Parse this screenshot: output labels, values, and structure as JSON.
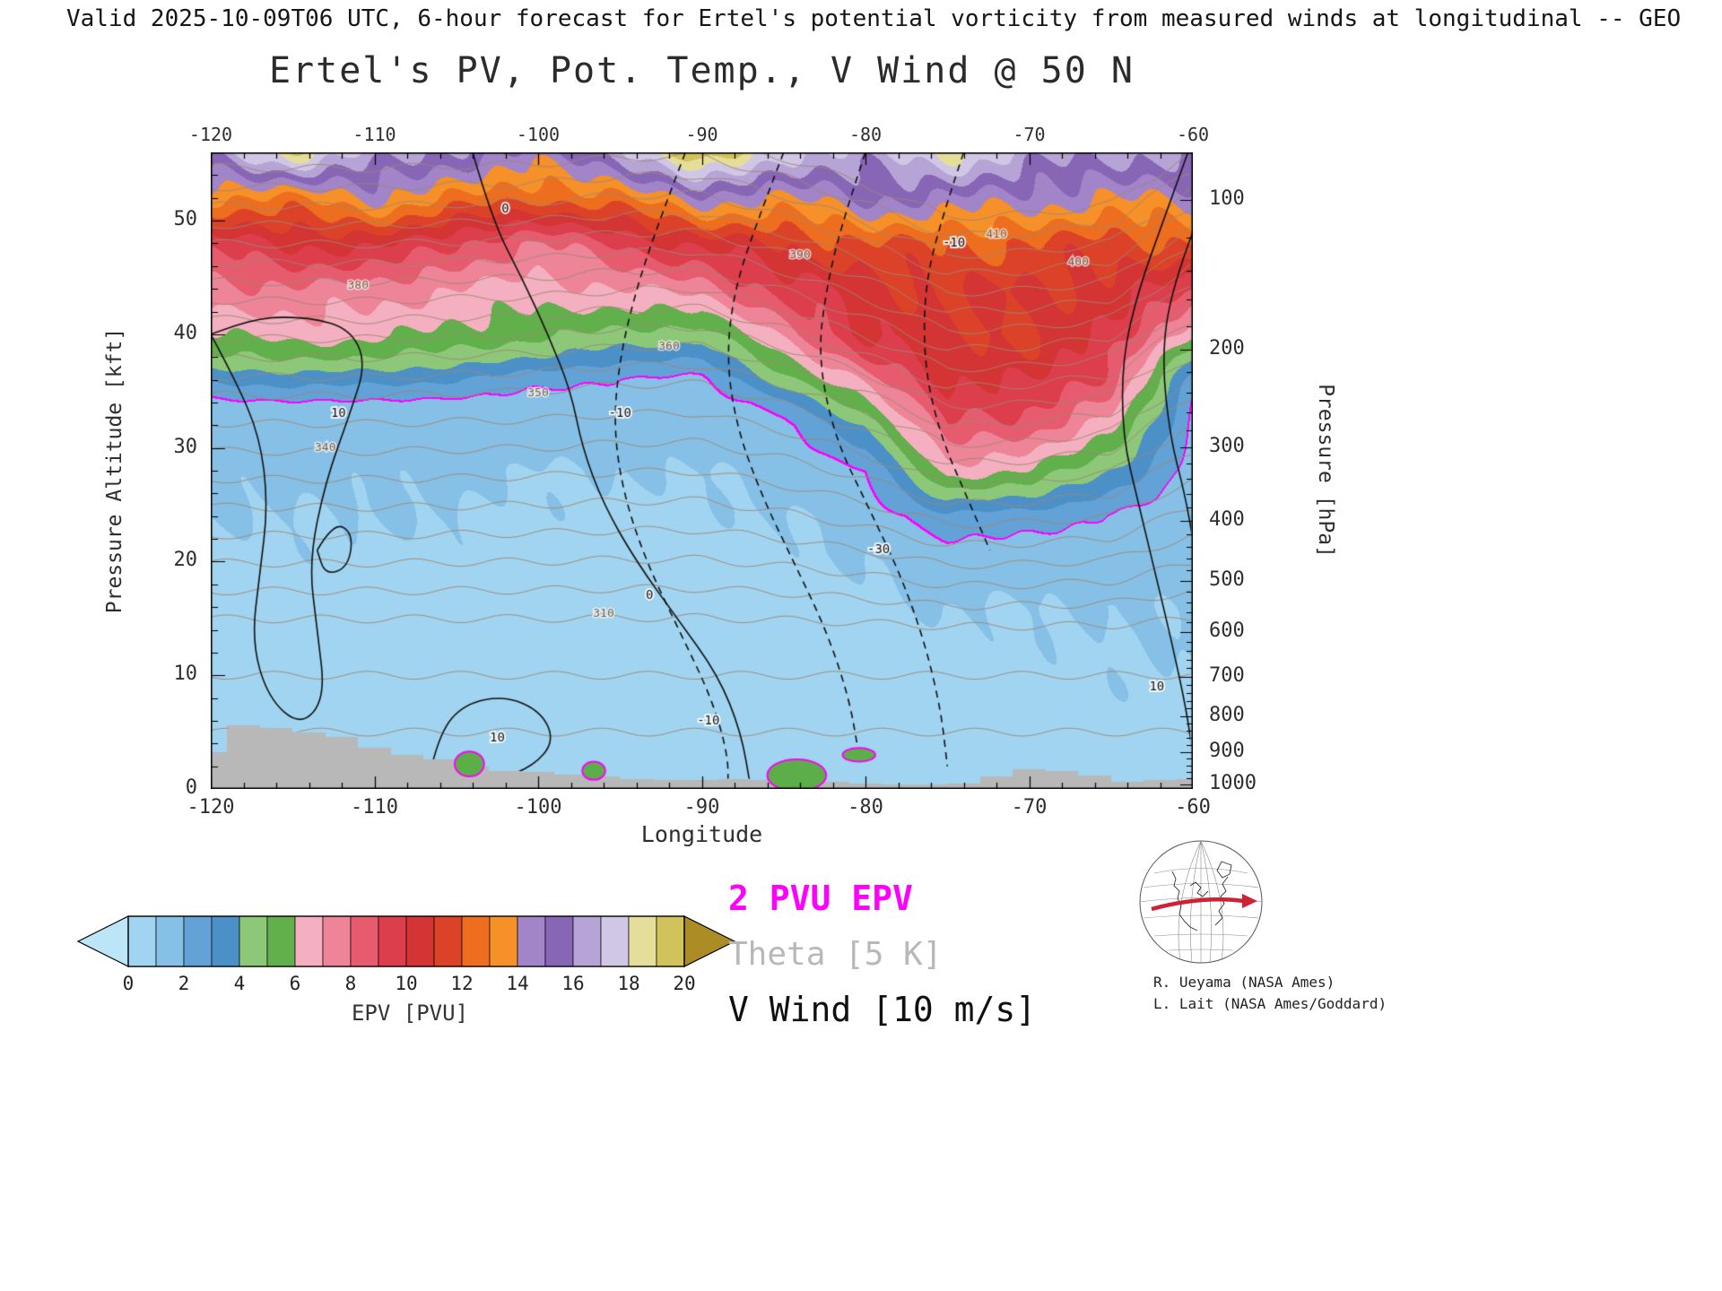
{
  "header": {
    "valid_line": "Valid 2025-10-09T06 UTC, 6-hour forecast for Ertel's potential vorticity from measured winds at longitudinal -- GEO"
  },
  "title": "Ertel's PV, Pot. Temp., V Wind @ 50 N",
  "axes": {
    "x": {
      "label": "Longitude",
      "min": -120,
      "max": -60,
      "major_ticks": [
        -120,
        -110,
        -100,
        -90,
        -80,
        -70,
        -60
      ],
      "minor_step": 2
    },
    "y_left": {
      "label": "Pressure Altitude [kft]",
      "min": 0,
      "max": 56,
      "major_ticks": [
        0,
        10,
        20,
        30,
        40,
        50
      ],
      "minor_step": 2
    },
    "y_right": {
      "label": "Pressure [hPa]",
      "ticks_hpa": [
        100,
        200,
        300,
        400,
        500,
        600,
        700,
        800,
        900,
        1000
      ]
    }
  },
  "legend": {
    "pv_line": "2 PVU EPV",
    "pv_color": "#ff00ff",
    "theta": "Theta [5 K]",
    "theta_color": "#b8b8b8",
    "wind": "V Wind [10 m/s]",
    "wind_color": "#101010"
  },
  "credits": [
    "R. Ueyama (NASA Ames)",
    "L. Lait (NASA Ames/Goddard)"
  ],
  "colorbar": {
    "title": "EPV [PVU]",
    "tick_labels": [
      0,
      2,
      4,
      6,
      8,
      10,
      12,
      14,
      16,
      18,
      20
    ],
    "under_color": "#bce6f8",
    "over_color": "#ac8c24",
    "bin_colors": [
      "#a0d4f0",
      "#86c0e6",
      "#62a2d6",
      "#4c90c8",
      "#8cc878",
      "#62b04c",
      "#f4b0c0",
      "#ee8498",
      "#e65c6e",
      "#dc3e4c",
      "#d43434",
      "#dc4228",
      "#ec6e1e",
      "#f69028",
      "#a284c8",
      "#8866b6",
      "#b6a4d6",
      "#d0c6e6",
      "#e4de9a",
      "#d2c25c"
    ]
  },
  "chart_data": {
    "type": "heatmap",
    "title": "Ertel's PV, Pot. Temp., V Wind @ 50 N",
    "xlabel": "Longitude",
    "ylabel_left": "Pressure Altitude [kft]",
    "ylabel_right": "Pressure [hPa]",
    "units": "PVU",
    "xlim": [
      -120,
      -60
    ],
    "ylim_kft": [
      0,
      56
    ],
    "x_lons": [
      -120,
      -115,
      -110,
      -105,
      -100,
      -95,
      -90,
      -85,
      -80,
      -75,
      -70,
      -65,
      -60
    ],
    "y_alts_kft": [
      0,
      4,
      8,
      12,
      16,
      20,
      24,
      28,
      32,
      34,
      36,
      38,
      40,
      44,
      48,
      52,
      56
    ],
    "epv_grid": [
      [
        0.8,
        0.8,
        0.8,
        0.9,
        0.9,
        0.8,
        0.8,
        0.8,
        0.8,
        0.8,
        0.9,
        0.9,
        0.9
      ],
      [
        0.7,
        0.7,
        0.7,
        0.8,
        0.8,
        0.7,
        0.7,
        0.7,
        0.7,
        0.8,
        0.8,
        0.8,
        0.8
      ],
      [
        0.7,
        0.7,
        0.7,
        0.7,
        0.7,
        0.7,
        0.7,
        0.7,
        0.8,
        0.8,
        0.9,
        0.9,
        0.9
      ],
      [
        0.7,
        0.7,
        0.7,
        0.7,
        0.7,
        0.7,
        0.7,
        0.8,
        0.8,
        0.9,
        0.9,
        1.0,
        1.0
      ],
      [
        0.8,
        0.8,
        0.8,
        0.8,
        0.8,
        0.8,
        0.7,
        0.8,
        0.9,
        1.0,
        1.0,
        1.0,
        1.1
      ],
      [
        0.9,
        0.9,
        0.9,
        0.9,
        0.8,
        0.8,
        0.8,
        0.9,
        1.0,
        1.3,
        1.2,
        1.2,
        1.2
      ],
      [
        1.0,
        1.0,
        1.0,
        1.0,
        0.9,
        0.9,
        0.9,
        1.0,
        1.2,
        2.8,
        2.5,
        1.9,
        1.3
      ],
      [
        1.1,
        1.1,
        1.1,
        1.1,
        1.0,
        1.0,
        1.0,
        1.2,
        2.0,
        6.5,
        6.0,
        4.0,
        1.5
      ],
      [
        1.4,
        1.4,
        1.4,
        1.3,
        1.3,
        1.2,
        1.2,
        1.7,
        4.0,
        9.0,
        8.5,
        6.5,
        1.7
      ],
      [
        1.8,
        1.9,
        1.9,
        1.7,
        1.6,
        1.4,
        1.3,
        2.6,
        6.0,
        9.5,
        9.5,
        7.5,
        2.0
      ],
      [
        3.2,
        3.4,
        3.4,
        3.0,
        2.4,
        1.9,
        1.8,
        4.5,
        7.5,
        10.0,
        10.2,
        8.5,
        2.6
      ],
      [
        4.8,
        5.2,
        5.0,
        4.6,
        4.0,
        3.4,
        3.0,
        6.0,
        9.0,
        10.5,
        10.8,
        9.2,
        4.0
      ],
      [
        6.0,
        6.5,
        6.2,
        5.8,
        5.2,
        4.8,
        4.4,
        7.5,
        10.0,
        11.0,
        11.0,
        10.0,
        6.0
      ],
      [
        7.5,
        8.0,
        7.5,
        7.0,
        6.5,
        7.0,
        7.5,
        9.5,
        10.5,
        11.0,
        11.0,
        10.5,
        9.5
      ],
      [
        9.5,
        10.0,
        10.5,
        9.0,
        8.0,
        9.0,
        10.5,
        11.0,
        12.0,
        12.0,
        12.0,
        11.5,
        12.0
      ],
      [
        13.0,
        13.0,
        14.0,
        13.0,
        12.0,
        13.0,
        14.5,
        14.0,
        15.0,
        15.0,
        14.5,
        14.0,
        14.5
      ],
      [
        16.5,
        18.5,
        17.0,
        15.5,
        15.0,
        16.0,
        21.0,
        17.0,
        17.0,
        18.0,
        17.0,
        16.0,
        16.5
      ]
    ],
    "tropopause_2pvu_kft": {
      "lons": [
        -120,
        -115,
        -110,
        -105,
        -100,
        -95,
        -90,
        -85,
        -80,
        -75,
        -70,
        -65,
        -60
      ],
      "alt": [
        34.3,
        34.2,
        34.2,
        34.6,
        35.0,
        36.1,
        36.3,
        32.7,
        28.0,
        22.3,
        22.8,
        24.5,
        34.0
      ]
    },
    "terrain_kft": {
      "lons": [
        -120,
        -118,
        -116,
        -114,
        -112,
        -110,
        -108,
        -106,
        -104,
        -102,
        -100,
        -98,
        -96,
        -94,
        -92,
        -90,
        -88,
        -86,
        -84,
        -82,
        -80,
        -78,
        -76,
        -74,
        -72,
        -70,
        -68,
        -66,
        -64,
        -62,
        -60
      ],
      "alt": [
        3.2,
        5.6,
        5.4,
        5.0,
        4.6,
        3.6,
        3.0,
        2.6,
        2.0,
        1.6,
        1.5,
        1.3,
        1.1,
        0.9,
        0.8,
        0.8,
        0.9,
        0.8,
        0.8,
        0.6,
        0.5,
        0.4,
        0.4,
        0.5,
        1.1,
        1.7,
        1.6,
        1.2,
        0.6,
        0.8,
        0.9
      ]
    },
    "theta_contours_K": {
      "min": 295,
      "max": 415,
      "step": 5,
      "levels_profile": {
        "z0_K": 295,
        "rate1_KperKft": 1.0,
        "break1_K": 310,
        "rate2_KperKft": 2.0,
        "break2_K": 350,
        "rate3_KperKft": 3.0
      },
      "labels": [
        {
          "value": 310,
          "lon": -96
        },
        {
          "value": 340,
          "lon": -113
        },
        {
          "value": 350,
          "lon": -100
        },
        {
          "value": 360,
          "lon": -92
        },
        {
          "value": 380,
          "lon": -111
        },
        {
          "value": 390,
          "lon": -84
        },
        {
          "value": 400,
          "lon": -67
        },
        {
          "value": 410,
          "lon": -72
        }
      ]
    },
    "wind_contours_ms": [
      {
        "level": "10",
        "style": "solid",
        "points": [
          [
            -120,
            40
          ],
          [
            -118.5,
            36
          ],
          [
            -117,
            31
          ],
          [
            -116.5,
            25
          ],
          [
            -117,
            19
          ],
          [
            -117.5,
            13
          ],
          [
            -116.5,
            8
          ],
          [
            -114.5,
            5.5
          ],
          [
            -113,
            8
          ],
          [
            -113.5,
            14
          ],
          [
            -114,
            20
          ],
          [
            -113,
            27
          ],
          [
            -111.5,
            33
          ],
          [
            -110.5,
            37.5
          ],
          [
            -111.5,
            40.5
          ],
          [
            -114,
            41.5
          ],
          [
            -117,
            41.5
          ],
          [
            -120,
            40
          ]
        ],
        "labels": [
          [
            -112.2,
            33
          ]
        ]
      },
      {
        "level": "",
        "style": "solid",
        "points": [
          [
            -113.5,
            21
          ],
          [
            -112.5,
            23.5
          ],
          [
            -111.3,
            22.5
          ],
          [
            -111.6,
            19.5
          ],
          [
            -113,
            18.8
          ],
          [
            -113.5,
            21
          ]
        ],
        "labels": []
      },
      {
        "level": "0",
        "style": "solid",
        "points": [
          [
            -104,
            56
          ],
          [
            -102.8,
            50
          ],
          [
            -101,
            45
          ],
          [
            -99.4,
            40
          ],
          [
            -98,
            35
          ],
          [
            -97.3,
            30
          ],
          [
            -96,
            25
          ],
          [
            -94,
            20
          ],
          [
            -91.5,
            15
          ],
          [
            -89,
            10
          ],
          [
            -87.6,
            5
          ],
          [
            -87,
            0
          ]
        ],
        "labels": [
          [
            -102,
            51
          ],
          [
            -93.2,
            17
          ]
        ]
      },
      {
        "level": "10",
        "style": "solid",
        "points": [
          [
            -106.5,
            2
          ],
          [
            -106,
            5
          ],
          [
            -104.5,
            7.5
          ],
          [
            -102,
            8.2
          ],
          [
            -99.8,
            6.8
          ],
          [
            -99,
            4.2
          ],
          [
            -100.3,
            2
          ],
          [
            -102.5,
            0.8
          ],
          [
            -105,
            0.8
          ],
          [
            -106.5,
            2
          ]
        ],
        "labels": [
          [
            -102.5,
            4.5
          ]
        ]
      },
      {
        "level": "10",
        "style": "solid",
        "points": [
          [
            -60.3,
            56
          ],
          [
            -61.8,
            50
          ],
          [
            -63.3,
            44
          ],
          [
            -64.3,
            38
          ],
          [
            -64.3,
            31
          ],
          [
            -63.3,
            25
          ],
          [
            -62.3,
            19
          ],
          [
            -61.3,
            13
          ],
          [
            -60.4,
            7
          ],
          [
            -60,
            3
          ]
        ],
        "labels": [
          [
            -62.2,
            9
          ]
        ]
      },
      {
        "level": "",
        "style": "solid",
        "points": [
          [
            -60,
            49
          ],
          [
            -61.3,
            44
          ],
          [
            -61.9,
            38
          ],
          [
            -61.4,
            31
          ],
          [
            -60.5,
            26
          ],
          [
            -60,
            22
          ]
        ],
        "labels": []
      },
      {
        "level": "-10",
        "style": "dashed",
        "points": [
          [
            -91,
            56
          ],
          [
            -92.6,
            50
          ],
          [
            -94,
            44
          ],
          [
            -95,
            38
          ],
          [
            -95.4,
            32
          ],
          [
            -94.8,
            26
          ],
          [
            -93.4,
            20
          ],
          [
            -91.4,
            14
          ],
          [
            -89.4,
            8
          ],
          [
            -88.4,
            3
          ],
          [
            -88.4,
            0
          ]
        ],
        "labels": [
          [
            -95,
            33
          ],
          [
            -89.6,
            6
          ]
        ]
      },
      {
        "level": "",
        "style": "dashed",
        "points": [
          [
            -85,
            56
          ],
          [
            -86.6,
            50
          ],
          [
            -88,
            44
          ],
          [
            -88.5,
            38
          ],
          [
            -87.9,
            32
          ],
          [
            -86.4,
            26
          ],
          [
            -84.4,
            20
          ],
          [
            -82.4,
            14
          ],
          [
            -81,
            8
          ],
          [
            -80.4,
            3
          ]
        ],
        "labels": []
      },
      {
        "level": "-30",
        "style": "dashed",
        "points": [
          [
            -80,
            56
          ],
          [
            -81.4,
            50
          ],
          [
            -82.4,
            44
          ],
          [
            -82.9,
            38
          ],
          [
            -81.9,
            31
          ],
          [
            -79.9,
            25
          ],
          [
            -77.9,
            19
          ],
          [
            -76.4,
            13
          ],
          [
            -75.4,
            7
          ],
          [
            -75,
            2
          ]
        ],
        "labels": [
          [
            -79.2,
            21
          ]
        ]
      },
      {
        "level": "-10",
        "style": "dashed",
        "points": [
          [
            -74,
            56
          ],
          [
            -75.4,
            50
          ],
          [
            -76.4,
            44
          ],
          [
            -76.4,
            37
          ],
          [
            -75.4,
            31
          ],
          [
            -73.9,
            26
          ],
          [
            -72.4,
            21
          ]
        ],
        "labels": [
          [
            -74.6,
            48
          ]
        ]
      }
    ],
    "surface_pv_spots": [
      {
        "lon": -104.2,
        "alt": 2.2,
        "rx": 0.9,
        "ry": 1.1
      },
      {
        "lon": -96.6,
        "alt": 1.6,
        "rx": 0.7,
        "ry": 0.8
      },
      {
        "lon": -84.2,
        "alt": 1.2,
        "rx": 1.8,
        "ry": 1.4
      },
      {
        "lon": -80.4,
        "alt": 3.0,
        "rx": 1.0,
        "ry": 0.6
      }
    ]
  }
}
